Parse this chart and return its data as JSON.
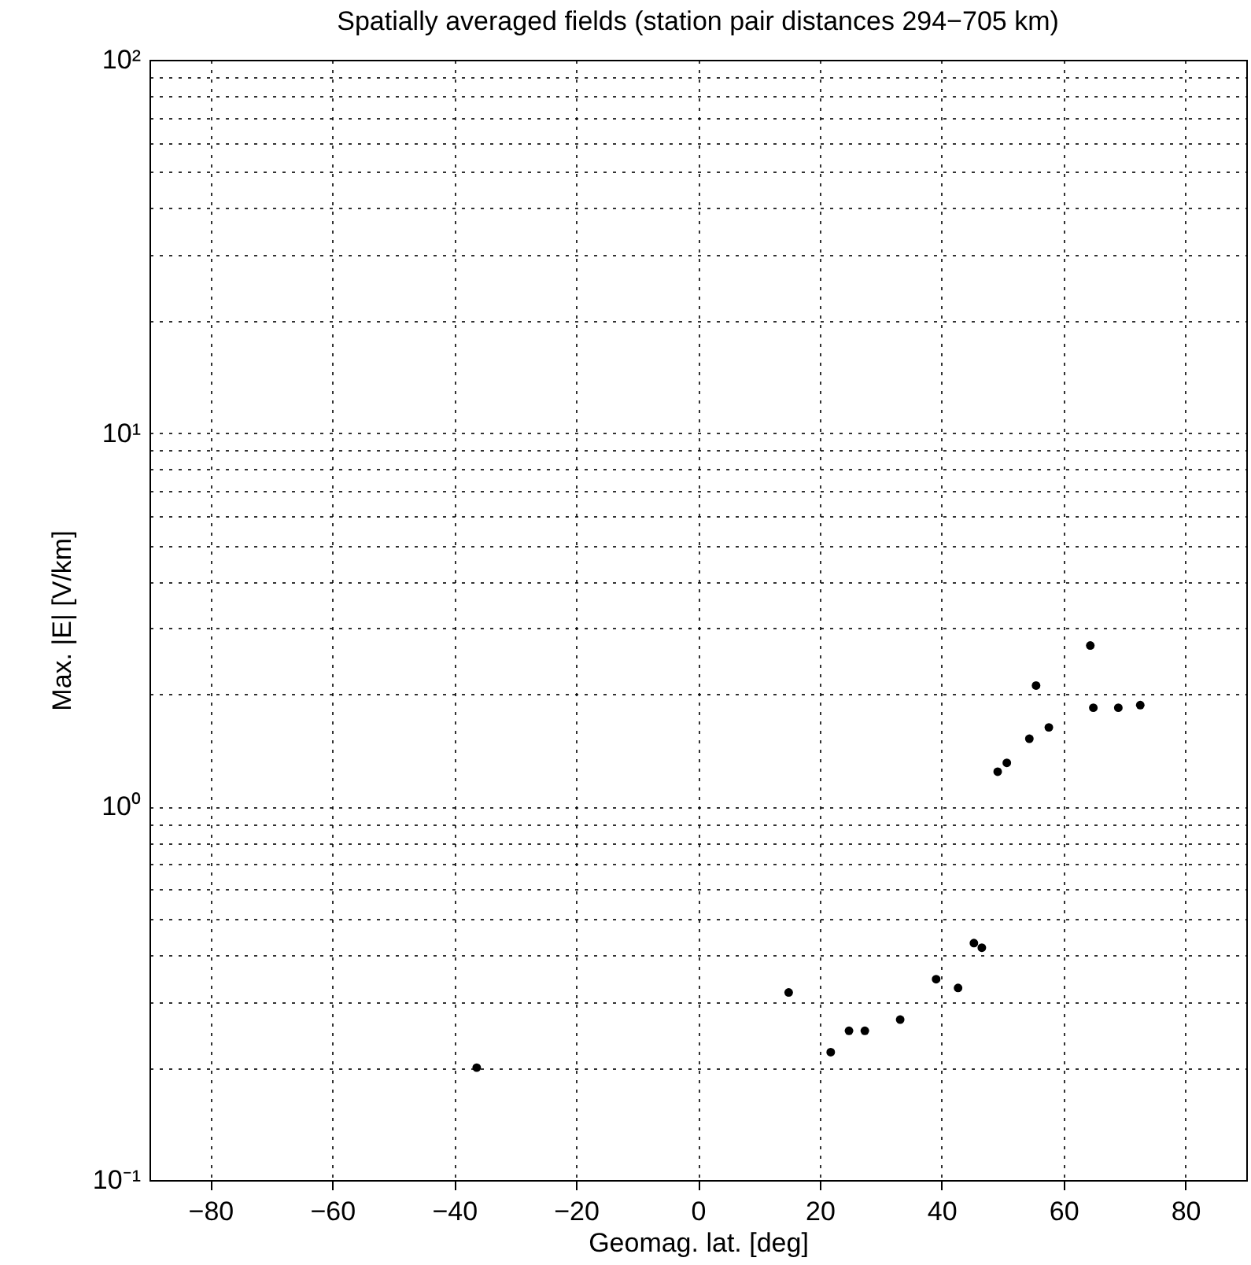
{
  "chart_data": {
    "type": "scatter",
    "title": "Spatially averaged fields (station pair distances 294−705 km)",
    "xlabel": "Geomag. lat. [deg]",
    "ylabel": "Max. |E| [V/km]",
    "x": [
      -36.3,
      14.9,
      21.8,
      24.8,
      27.4,
      33.2,
      39.1,
      42.7,
      45.3,
      46.6,
      49.2,
      50.7,
      54.4,
      57.6,
      55.5,
      64.4,
      64.9,
      69,
      72.6
    ],
    "series": [
      {
        "color": "#000000",
        "values": [
          0.2,
          0.318,
          0.22,
          0.251,
          0.251,
          0.269,
          0.345,
          0.327,
          0.431,
          0.419,
          1.24,
          1.31,
          1.52,
          1.63,
          2.11,
          2.7,
          1.84,
          1.84,
          1.87
        ]
      }
    ],
    "xlim": [
      -90,
      90
    ],
    "xticks": [
      {
        "value": -80,
        "label": "−80"
      },
      {
        "value": -60,
        "label": "−60"
      },
      {
        "value": -40,
        "label": "−40"
      },
      {
        "value": -20,
        "label": "−20"
      },
      0,
      20,
      40,
      60,
      80
    ],
    "ylim": [
      0.1,
      100
    ],
    "log": "y",
    "yticks": [
      {
        "value": 0.1,
        "label": "10⁻¹"
      },
      {
        "value": 0.2,
        "label": null
      },
      {
        "value": 0.3,
        "label": null
      },
      {
        "value": 0.4,
        "label": null
      },
      {
        "value": 0.5,
        "label": null
      },
      {
        "value": 0.6,
        "label": null
      },
      {
        "value": 0.7,
        "label": null
      },
      {
        "value": 0.8,
        "label": null
      },
      {
        "value": 0.9,
        "label": null
      },
      {
        "value": 1,
        "label": "10⁰"
      },
      {
        "value": 2,
        "label": null
      },
      {
        "value": 3,
        "label": null
      },
      {
        "value": 4,
        "label": null
      },
      {
        "value": 5,
        "label": null
      },
      {
        "value": 6,
        "label": null
      },
      {
        "value": 7,
        "label": null
      },
      {
        "value": 8,
        "label": null
      },
      {
        "value": 9,
        "label": null
      },
      {
        "value": 10,
        "label": "10¹"
      },
      {
        "value": 20,
        "label": null
      },
      {
        "value": 30,
        "label": null
      },
      {
        "value": 40,
        "label": null
      },
      {
        "value": 50,
        "label": null
      },
      {
        "value": 60,
        "label": null
      },
      {
        "value": 70,
        "label": null
      },
      {
        "value": 80,
        "label": null
      },
      {
        "value": 90,
        "label": null
      },
      {
        "value": 100,
        "label": "10²"
      }
    ],
    "grid": true,
    "marker": "circle"
  }
}
